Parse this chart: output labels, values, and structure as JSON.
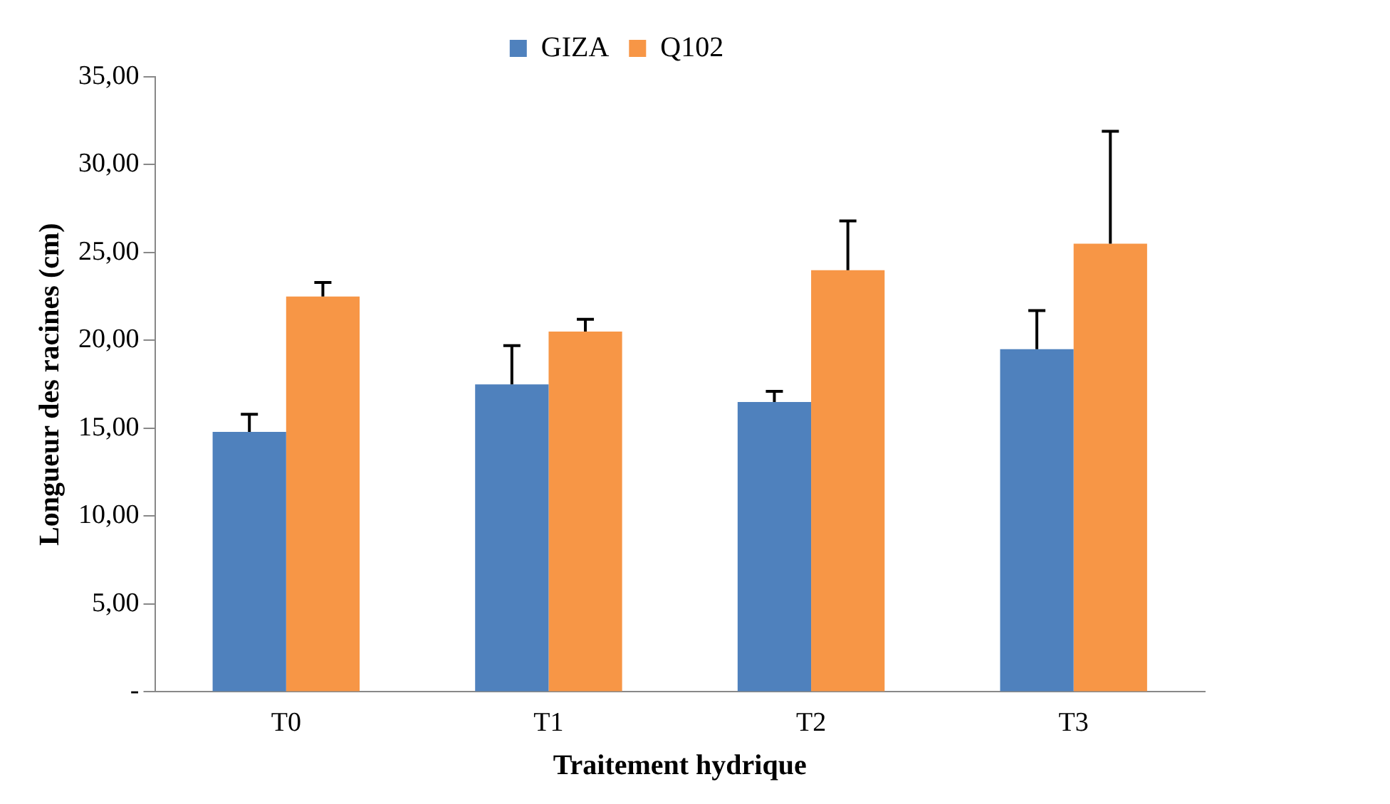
{
  "chart_data": {
    "type": "bar",
    "xlabel": "Traitement hydrique",
    "ylabel": "Longueur des racines (cm)",
    "categories": [
      "T0",
      "T1",
      "T2",
      "T3"
    ],
    "series": [
      {
        "name": "GIZA",
        "color": "#4f81bd",
        "values": [
          14.8,
          17.5,
          16.5,
          19.5
        ],
        "errors": [
          [
            14.8,
            15.8
          ],
          [
            17.5,
            19.7
          ],
          [
            16.5,
            17.1
          ],
          [
            19.5,
            21.7
          ]
        ]
      },
      {
        "name": "Q102",
        "color": "#f79646",
        "values": [
          22.5,
          20.5,
          24.0,
          25.5
        ],
        "errors": [
          [
            22.5,
            23.3
          ],
          [
            20.5,
            21.2
          ],
          [
            24.0,
            26.8
          ],
          [
            25.5,
            31.9
          ]
        ]
      }
    ],
    "ylim": [
      0,
      35
    ],
    "yticks": [
      {
        "value": 0,
        "label": "-"
      },
      {
        "value": 5,
        "label": "5,00"
      },
      {
        "value": 10,
        "label": "10,00"
      },
      {
        "value": 15,
        "label": "15,00"
      },
      {
        "value": 20,
        "label": "20,00"
      },
      {
        "value": 25,
        "label": "25,00"
      },
      {
        "value": 30,
        "label": "30,00"
      },
      {
        "value": 35,
        "label": "35,00"
      }
    ],
    "grid": false,
    "legend": "top"
  }
}
